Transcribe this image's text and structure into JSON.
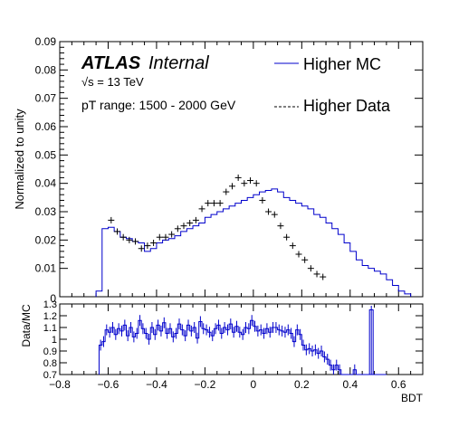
{
  "chart_data": [
    {
      "type": "histogram",
      "panel": "main",
      "ylabel": "Normalized to unity",
      "xlim": [
        -0.8,
        0.7
      ],
      "ylim": [
        0,
        0.09
      ],
      "yticks": [
        "0.01",
        "0.02",
        "0.03",
        "0.04",
        "0.05",
        "0.06",
        "0.07",
        "0.08",
        "0.09"
      ],
      "ytick_values": [
        0.01,
        0.02,
        0.03,
        0.04,
        0.05,
        0.06,
        0.07,
        0.08,
        0.09
      ],
      "annotations": {
        "atlas": "ATLAS",
        "internal": "Internal",
        "sqrt_s": "√s = 13 TeV",
        "pt_range": "pT range: 1500 - 2000 GeV",
        "y_zero_label": "0"
      },
      "legend": {
        "position": "top-right",
        "entries": [
          {
            "label": "Higher MC",
            "style": "solid",
            "color": "#0000cc"
          },
          {
            "label": "Higher Data",
            "style": "dashed",
            "color": "#000000"
          }
        ]
      },
      "series": [
        {
          "name": "Higher MC",
          "kind": "step",
          "color": "#0000cc",
          "bin_width": 0.025,
          "x_start": -0.65,
          "values": [
            0.002,
            0.024,
            0.0245,
            0.023,
            0.021,
            0.0205,
            0.0195,
            0.019,
            0.016,
            0.017,
            0.019,
            0.02,
            0.0205,
            0.0215,
            0.023,
            0.024,
            0.025,
            0.026,
            0.028,
            0.029,
            0.03,
            0.031,
            0.032,
            0.033,
            0.034,
            0.035,
            0.036,
            0.037,
            0.0375,
            0.038,
            0.037,
            0.035,
            0.034,
            0.033,
            0.032,
            0.031,
            0.029,
            0.028,
            0.026,
            0.024,
            0.022,
            0.019,
            0.016,
            0.013,
            0.011,
            0.01,
            0.009,
            0.008,
            0.006,
            0.004,
            0.002,
            0.001
          ]
        },
        {
          "name": "Higher Data",
          "kind": "points",
          "color": "#000000",
          "x": [
            -0.5875,
            -0.5625,
            -0.5375,
            -0.5125,
            -0.4875,
            -0.4625,
            -0.4375,
            -0.4125,
            -0.3875,
            -0.3625,
            -0.3375,
            -0.3125,
            -0.2875,
            -0.2625,
            -0.2375,
            -0.2125,
            -0.1875,
            -0.1625,
            -0.1375,
            -0.1125,
            -0.0875,
            -0.0625,
            -0.0375,
            -0.0125,
            0.0125,
            0.0375,
            0.0625,
            0.0875,
            0.1125,
            0.1375,
            0.1625,
            0.1875,
            0.2125,
            0.2375,
            0.2625,
            0.2875
          ],
          "y": [
            0.027,
            0.023,
            0.021,
            0.02,
            0.0195,
            0.017,
            0.018,
            0.019,
            0.021,
            0.021,
            0.022,
            0.024,
            0.025,
            0.026,
            0.027,
            0.031,
            0.033,
            0.033,
            0.033,
            0.037,
            0.039,
            0.042,
            0.04,
            0.041,
            0.04,
            0.034,
            0.03,
            0.029,
            0.025,
            0.021,
            0.018,
            0.015,
            0.013,
            0.01,
            0.008,
            0.007
          ]
        }
      ]
    },
    {
      "type": "scatter",
      "panel": "ratio",
      "ylabel": "Data/MC",
      "xlabel": "BDT",
      "xlim": [
        -0.8,
        0.7
      ],
      "ylim": [
        0.7,
        1.3
      ],
      "xticks": [
        "−0.8",
        "−0.6",
        "−0.4",
        "−0.2",
        "0",
        "0.2",
        "0.4",
        "0.6"
      ],
      "xtick_values": [
        -0.8,
        -0.6,
        -0.4,
        -0.2,
        0,
        0.2,
        0.4,
        0.6
      ],
      "yticks": [
        "0.7",
        "0.8",
        "0.9",
        "1",
        "1.1",
        "1.2",
        "1.3"
      ],
      "ytick_values": [
        0.7,
        0.8,
        0.9,
        1.0,
        1.1,
        1.2,
        1.3
      ],
      "bin_width": 0.0125,
      "x_start": -0.6375,
      "values": [
        0.95,
        0.98,
        1.08,
        1.06,
        1.1,
        1.04,
        1.09,
        1.07,
        1.12,
        1.03,
        1.1,
        1.02,
        1.05,
        1.16,
        1.09,
        1.05,
        1.0,
        1.1,
        1.04,
        1.12,
        1.07,
        1.14,
        1.05,
        1.09,
        1.02,
        1.05,
        1.13,
        1.08,
        1.03,
        1.12,
        1.07,
        1.1,
        1.01,
        1.15,
        1.09,
        1.08,
        1.06,
        1.03,
        1.09,
        1.12,
        1.05,
        1.1,
        1.08,
        1.13,
        1.06,
        1.11,
        1.06,
        1.04,
        1.1,
        1.09,
        1.16,
        1.11,
        1.07,
        1.08,
        1.05,
        1.09,
        1.06,
        1.1,
        1.1,
        1.08,
        1.07,
        1.06,
        1.08,
        1.05,
        0.98,
        1.08,
        1.04,
        0.95,
        0.91,
        0.92,
        0.9,
        0.91,
        0.88,
        0.9,
        0.85,
        0.83,
        0.78,
        0.74,
        0.78,
        0.74,
        0.7,
        0.7,
        0.7,
        0.7,
        0.74,
        0.7,
        0.7,
        0.7,
        0.7,
        0.7,
        0.7,
        0.7,
        0.7,
        0.7,
        0.7
      ],
      "spike": {
        "x": 0.4875,
        "value": 1.25
      }
    }
  ]
}
